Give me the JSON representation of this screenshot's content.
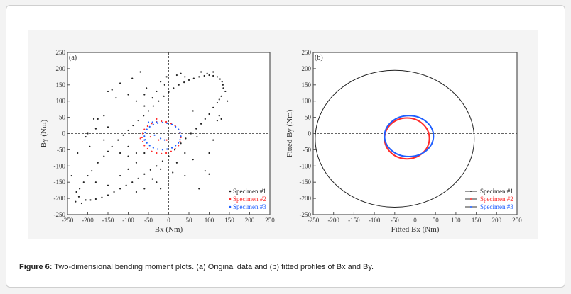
{
  "caption": {
    "label": "Figure 6:",
    "text": " Two-dimensional bending moment plots. (a) Original data and (b) fitted profiles of Bx and By."
  },
  "chart_data": [
    {
      "type": "scatter",
      "panel_label": "(a)",
      "xlabel": "Bx (Nm)",
      "ylabel": "By (Nm)",
      "xlim": [
        -250,
        250
      ],
      "ylim": [
        -250,
        250
      ],
      "xticks": [
        -250,
        -200,
        -150,
        -100,
        -50,
        0,
        50,
        100,
        150,
        200,
        250
      ],
      "yticks": [
        -250,
        -200,
        -150,
        -100,
        -50,
        0,
        50,
        100,
        150,
        200,
        250
      ],
      "grid": false,
      "zero_lines": "dashed",
      "legend_position": "bottom-right",
      "series": [
        {
          "name": "Specimen #1",
          "color": "#222222",
          "points": [
            [
              -220,
              -170
            ],
            [
              -200,
              -130
            ],
            [
              -175,
              -90
            ],
            [
              -150,
              -55
            ],
            [
              -125,
              -20
            ],
            [
              -100,
              10
            ],
            [
              -75,
              40
            ],
            [
              -50,
              70
            ],
            [
              -25,
              100
            ],
            [
              0,
              128
            ],
            [
              25,
              150
            ],
            [
              50,
              165
            ],
            [
              75,
              175
            ],
            [
              100,
              180
            ],
            [
              120,
              175
            ],
            [
              132,
              160
            ],
            [
              135,
              140
            ],
            [
              130,
              115
            ],
            [
              120,
              95
            ],
            [
              100,
              60
            ],
            [
              80,
              30
            ],
            [
              55,
              0
            ],
            [
              30,
              -30
            ],
            [
              0,
              -70
            ],
            [
              -30,
              -100
            ],
            [
              -60,
              -125
            ],
            [
              -90,
              -150
            ],
            [
              -120,
              -170
            ],
            [
              -150,
              -190
            ],
            [
              -180,
              -202
            ],
            [
              -205,
              -205
            ],
            [
              -222,
              -195
            ],
            [
              -228,
              -180
            ],
            [
              -210,
              -150
            ],
            [
              -190,
              -115
            ],
            [
              -160,
              -70
            ],
            [
              -140,
              -40
            ],
            [
              -112,
              -5
            ],
            [
              -88,
              25
            ],
            [
              -62,
              55
            ],
            [
              -38,
              85
            ],
            [
              -12,
              115
            ],
            [
              12,
              140
            ],
            [
              38,
              158
            ],
            [
              62,
              170
            ],
            [
              88,
              178
            ],
            [
              110,
              178
            ],
            [
              127,
              168
            ],
            [
              134,
              150
            ],
            [
              125,
              105
            ],
            [
              110,
              80
            ],
            [
              90,
              45
            ],
            [
              68,
              15
            ],
            [
              42,
              -15
            ],
            [
              15,
              -50
            ],
            [
              -15,
              -85
            ],
            [
              -45,
              -112
            ],
            [
              -75,
              -138
            ],
            [
              -105,
              -160
            ],
            [
              -135,
              -180
            ],
            [
              -165,
              -197
            ],
            [
              -193,
              -205
            ],
            [
              -70,
              190
            ],
            [
              -90,
              170
            ],
            [
              -120,
              155
            ],
            [
              -150,
              130
            ],
            [
              -140,
              135
            ],
            [
              -100,
              120
            ],
            [
              -80,
              100
            ],
            [
              -60,
              85
            ],
            [
              -130,
              110
            ],
            [
              -175,
              45
            ],
            [
              -185,
              45
            ],
            [
              -160,
              55
            ],
            [
              -150,
              20
            ],
            [
              -200,
              0
            ],
            [
              -205,
              -10
            ],
            [
              -180,
              15
            ],
            [
              -120,
              -60
            ],
            [
              -100,
              -70
            ],
            [
              -80,
              -60
            ],
            [
              -80,
              -90
            ],
            [
              -60,
              -60
            ],
            [
              -20,
              -110
            ],
            [
              -30,
              -150
            ],
            [
              -20,
              -170
            ],
            [
              -40,
              -140
            ],
            [
              10,
              -120
            ],
            [
              20,
              -90
            ],
            [
              40,
              -60
            ],
            [
              60,
              -80
            ],
            [
              40,
              -130
            ],
            [
              75,
              -170
            ],
            [
              90,
              -115
            ],
            [
              100,
              -125
            ],
            [
              100,
              -60
            ],
            [
              110,
              -20
            ],
            [
              120,
              40
            ],
            [
              140,
              130
            ],
            [
              145,
              100
            ],
            [
              125,
              55
            ],
            [
              130,
              45
            ],
            [
              60,
              70
            ],
            [
              70,
              -10
            ],
            [
              -10,
              150
            ],
            [
              -20,
              160
            ],
            [
              -40,
              110
            ],
            [
              -60,
              120
            ],
            [
              -55,
              140
            ],
            [
              -30,
              130
            ],
            [
              -5,
              175
            ],
            [
              20,
              180
            ],
            [
              40,
              175
            ],
            [
              30,
              185
            ],
            [
              80,
              190
            ],
            [
              95,
              185
            ],
            [
              110,
              190
            ],
            [
              -150,
              -160
            ],
            [
              -120,
              -130
            ],
            [
              -100,
              -110
            ],
            [
              -60,
              -170
            ],
            [
              -80,
              -180
            ],
            [
              -180,
              -150
            ],
            [
              -230,
              -210
            ],
            [
              -215,
              -215
            ],
            [
              -240,
              -130
            ],
            [
              -225,
              -60
            ],
            [
              -195,
              -40
            ],
            [
              -160,
              -20
            ],
            [
              -100,
              -40
            ]
          ]
        },
        {
          "name": "Specimen #2",
          "color": "#ff2a2a",
          "points": [
            [
              30,
              -12
            ],
            [
              24,
              13
            ],
            [
              6,
              31
            ],
            [
              -18,
              38
            ],
            [
              -42,
              31
            ],
            [
              -60,
              13
            ],
            [
              -66,
              -12
            ],
            [
              -60,
              -37
            ],
            [
              -42,
              -55
            ],
            [
              -18,
              -62
            ],
            [
              6,
              -55
            ],
            [
              24,
              -37
            ],
            [
              28,
              2
            ],
            [
              16,
              24
            ],
            [
              -6,
              36
            ],
            [
              -30,
              36
            ],
            [
              -52,
              23
            ],
            [
              -64,
              0
            ],
            [
              -64,
              -25
            ],
            [
              -52,
              -47
            ],
            [
              -30,
              -60
            ],
            [
              -6,
              -60
            ],
            [
              16,
              -47
            ],
            [
              28,
              -25
            ],
            [
              -30,
              45
            ],
            [
              -25,
              -20
            ],
            [
              -45,
              -10
            ],
            [
              -70,
              -15
            ],
            [
              -5,
              -20
            ]
          ]
        },
        {
          "name": "Specimen #3",
          "color": "#1f5fff",
          "points": [
            [
              30,
              -8
            ],
            [
              24,
              13
            ],
            [
              8,
              28
            ],
            [
              -15,
              34
            ],
            [
              -38,
              28
            ],
            [
              -54,
              13
            ],
            [
              -60,
              -8
            ],
            [
              -54,
              -29
            ],
            [
              -38,
              -44
            ],
            [
              -15,
              -50
            ],
            [
              8,
              -44
            ],
            [
              24,
              -29
            ],
            [
              28,
              3
            ],
            [
              17,
              21
            ],
            [
              -4,
              32
            ],
            [
              -27,
              32
            ],
            [
              -47,
              21
            ],
            [
              -58,
              3
            ],
            [
              -58,
              -19
            ],
            [
              -47,
              -37
            ],
            [
              -27,
              -48
            ],
            [
              -4,
              -48
            ],
            [
              17,
              -37
            ],
            [
              28,
              -19
            ],
            [
              -50,
              35
            ],
            [
              -40,
              35
            ],
            [
              -30,
              35
            ],
            [
              -20,
              -15
            ],
            [
              -10,
              -20
            ],
            [
              -35,
              -5
            ],
            [
              -60,
              -20
            ]
          ]
        }
      ]
    },
    {
      "type": "line",
      "panel_label": "(b)",
      "xlabel": "Fitted Bx (Nm)",
      "ylabel": "Fitted By (Nm)",
      "xlim": [
        -250,
        250
      ],
      "ylim": [
        -250,
        250
      ],
      "xticks": [
        -250,
        -200,
        -150,
        -100,
        -50,
        0,
        50,
        100,
        150,
        200,
        250
      ],
      "yticks": [
        -250,
        -200,
        -150,
        -100,
        -50,
        0,
        50,
        100,
        150,
        200,
        250
      ],
      "grid": false,
      "zero_lines": "dashed",
      "legend_position": "bottom-right",
      "series": [
        {
          "name": "Specimen #1",
          "color": "#222222",
          "ellipse": {
            "center": [
              -50,
              -16
            ],
            "radius_x": 195,
            "radius_y": 211
          }
        },
        {
          "name": "Specimen #2",
          "color": "#ff2a2a",
          "ellipse": {
            "center": [
              -20,
              -15
            ],
            "radius_x": 55,
            "radius_y": 63
          }
        },
        {
          "name": "Specimen #3",
          "color": "#1f5fff",
          "ellipse": {
            "center": [
              -15,
              -8
            ],
            "radius_x": 60,
            "radius_y": 63
          }
        }
      ]
    }
  ]
}
